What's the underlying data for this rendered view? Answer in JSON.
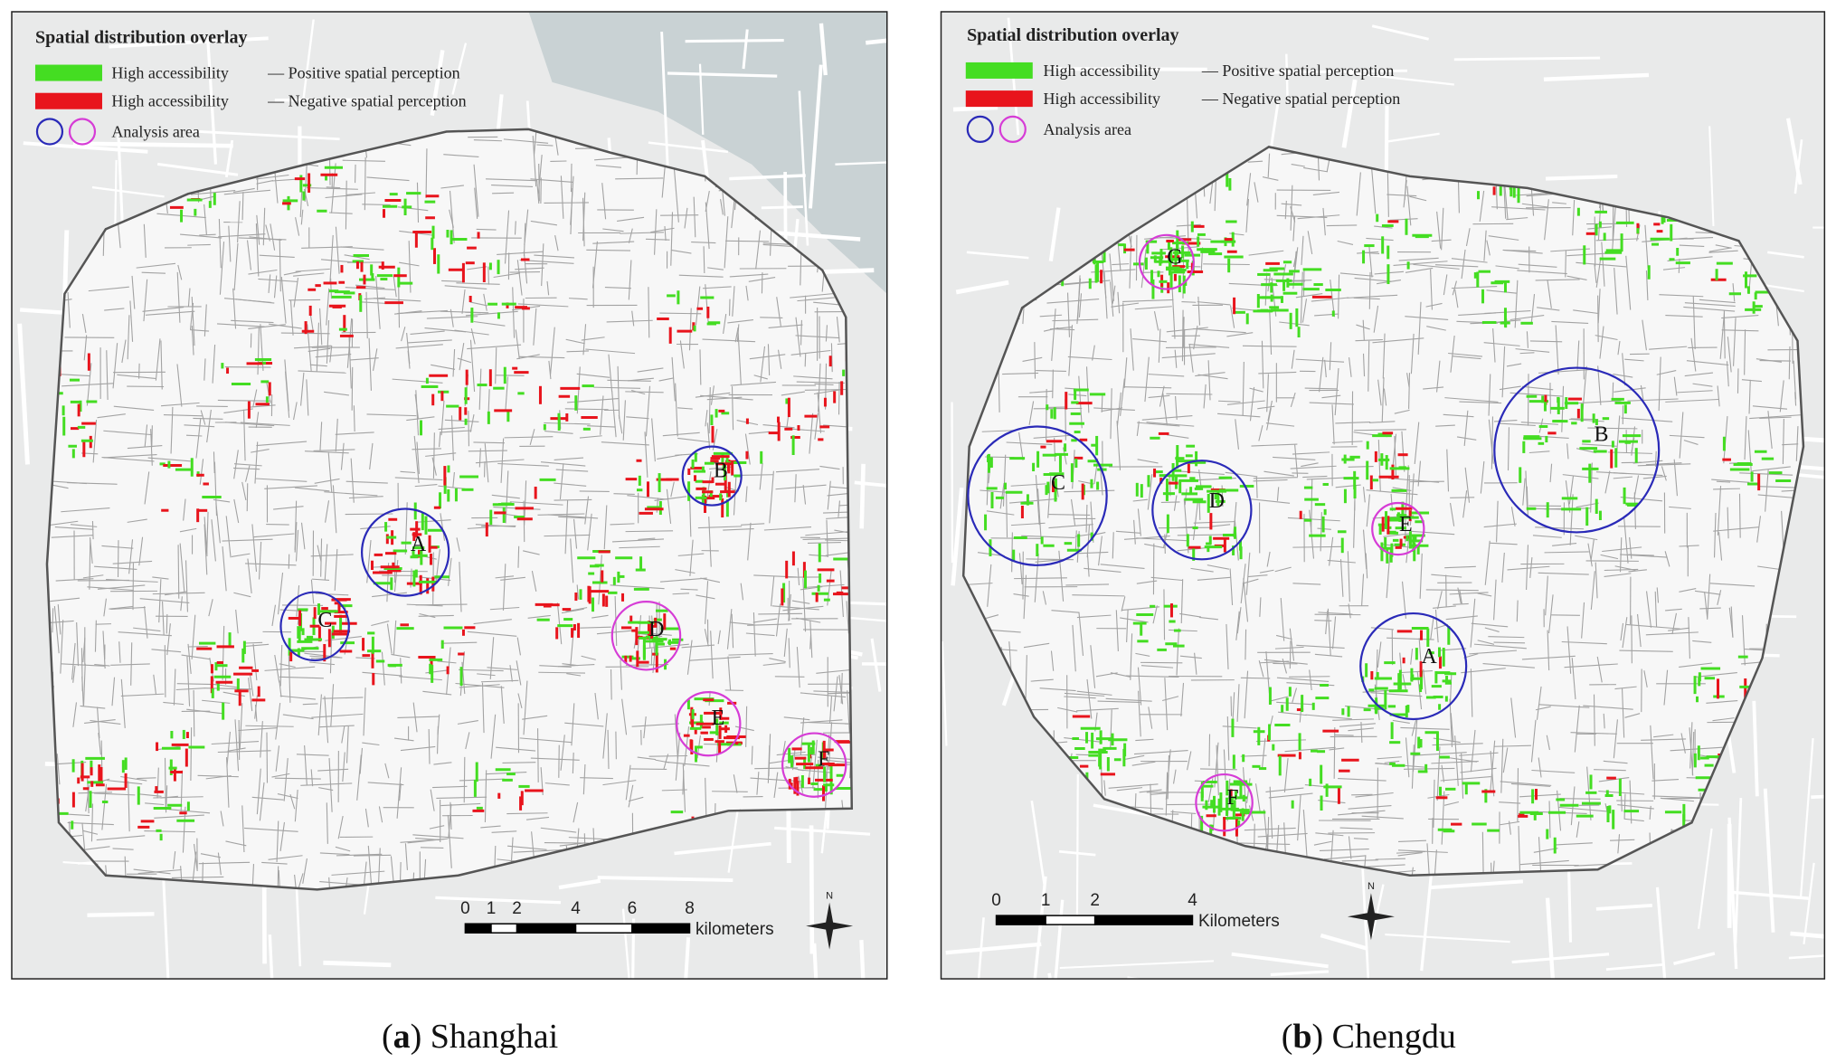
{
  "panels": [
    {
      "legend": {
        "title": "Spatial distribution overlay",
        "items": [
          {
            "label": "High accessibility",
            "description": "— Positive spatial perception",
            "color": "#44dd22"
          },
          {
            "label": "High accessibility",
            "description": "— Negative spatial perception",
            "color": "#e8141c"
          },
          {
            "label": "Analysis area",
            "colors": [
              "#2a2ab8",
              "#d63cd6"
            ]
          }
        ]
      },
      "areas": [
        {
          "label": "A",
          "color": "#2a2ab8"
        },
        {
          "label": "B",
          "color": "#2a2ab8"
        },
        {
          "label": "C",
          "color": "#2a2ab8"
        },
        {
          "label": "D",
          "color": "#d63cd6"
        },
        {
          "label": "E",
          "color": "#d63cd6"
        },
        {
          "label": "F",
          "color": "#d63cd6"
        }
      ],
      "scale_bar": {
        "ticks": [
          "0",
          "1",
          "2",
          "4",
          "6",
          "8"
        ],
        "unit": "kilometers"
      },
      "north": "N",
      "caption": [
        {
          "text": "(",
          "bold": false
        },
        {
          "text": "a",
          "bold": true
        },
        {
          "text": ") Shanghai",
          "bold": false
        }
      ]
    },
    {
      "legend": {
        "title": "Spatial distribution overlay",
        "items": [
          {
            "label": "High accessibility",
            "description": "— Positive spatial perception",
            "color": "#44dd22"
          },
          {
            "label": "High accessibility",
            "description": "— Negative spatial perception",
            "color": "#e8141c"
          },
          {
            "label": "Analysis area",
            "colors": [
              "#2a2ab8",
              "#d63cd6"
            ]
          }
        ]
      },
      "areas": [
        {
          "label": "G",
          "color": "#d63cd6"
        },
        {
          "label": "B",
          "color": "#2a2ab8"
        },
        {
          "label": "C",
          "color": "#2a2ab8"
        },
        {
          "label": "D",
          "color": "#2a2ab8"
        },
        {
          "label": "E",
          "color": "#d63cd6"
        },
        {
          "label": "A",
          "color": "#2a2ab8"
        },
        {
          "label": "F",
          "color": "#d63cd6"
        }
      ],
      "scale_bar": {
        "ticks": [
          "0",
          "1",
          "2",
          "4"
        ],
        "unit": "Kilometers"
      },
      "north": "N",
      "caption": [
        {
          "text": "(",
          "bold": false
        },
        {
          "text": "b",
          "bold": true
        },
        {
          "text": ") Chengdu",
          "bold": false
        }
      ]
    }
  ]
}
